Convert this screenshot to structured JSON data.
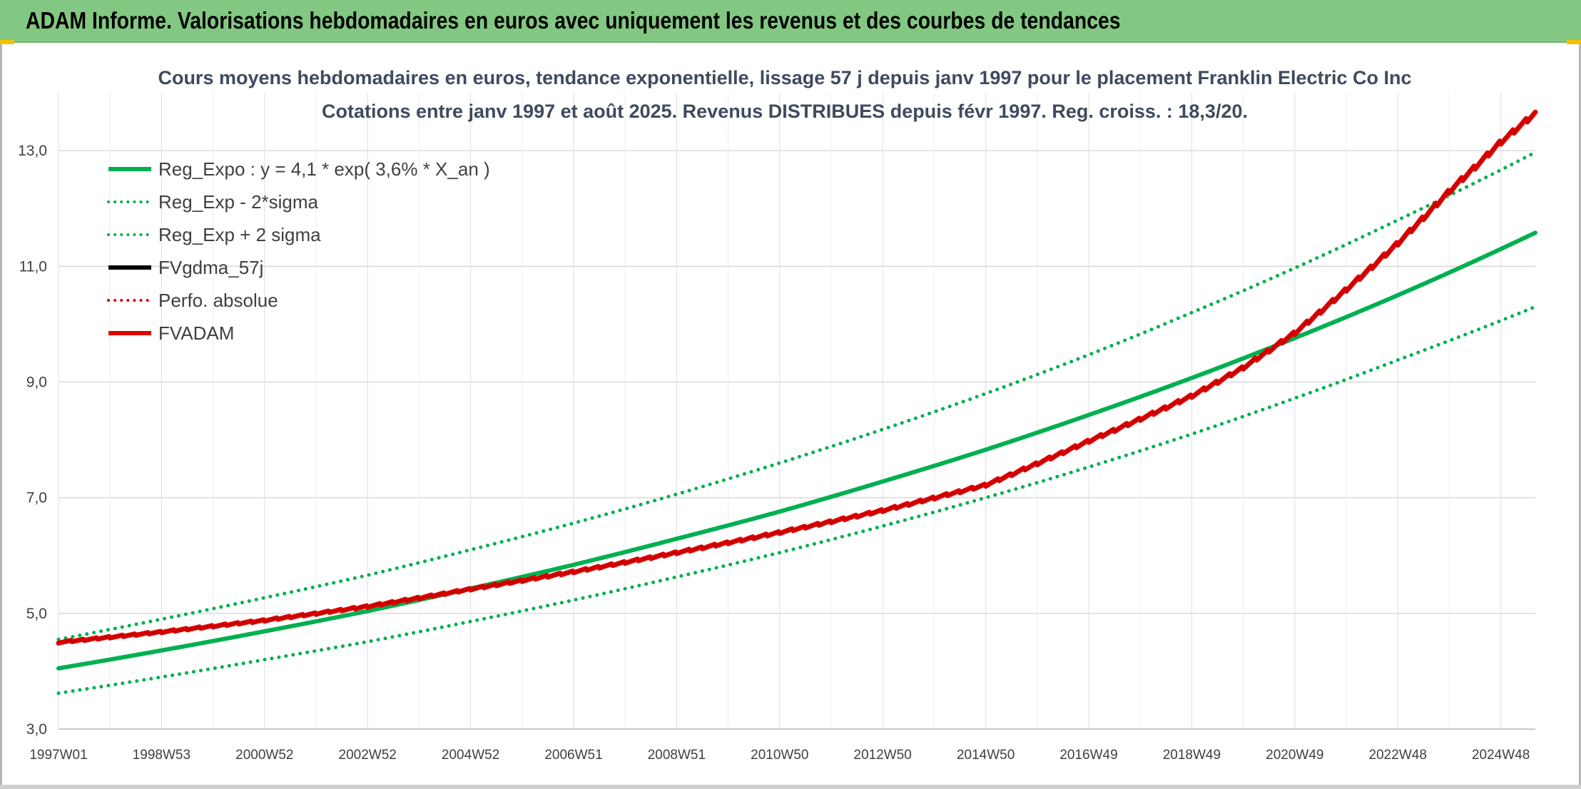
{
  "header": {
    "title": "ADAM Informe. Valorisations hebdomadaires en euros avec uniquement les revenus et des courbes de tendances"
  },
  "chart_data": {
    "type": "line",
    "title": "Cours moyens hebdomadaires en euros, tendance exponentielle, lissage 57 j depuis janv 1997 pour le placement Franklin Electric Co Inc",
    "subtitle": "Cotations entre janv 1997 et août 2025. Revenus DISTRIBUES depuis févr 1997. Reg. croiss. : 18,3/20.",
    "xlabel": "",
    "ylabel": "",
    "ylim": [
      3,
      14
    ],
    "xlim": [
      1997.0,
      2025.67
    ],
    "y_ticks": [
      3,
      5,
      7,
      9,
      11,
      13
    ],
    "y_tick_labels": [
      "3,0",
      "5,0",
      "7,0",
      "9,0",
      "11,0",
      "13,0"
    ],
    "x_ticks": [
      1997.0,
      1999.0,
      2001.0,
      2003.0,
      2005.0,
      2007.0,
      2009.0,
      2011.0,
      2013.0,
      2015.0,
      2017.0,
      2019.0,
      2021.0,
      2023.0,
      2025.0
    ],
    "x_tick_labels": [
      "1997W01",
      "1998W53",
      "2000W52",
      "2002W52",
      "2004W52",
      "2006W51",
      "2008W51",
      "2010W50",
      "2012W50",
      "2014W50",
      "2016W49",
      "2018W49",
      "2020W49",
      "2022W48",
      "2024W48"
    ],
    "grid": true,
    "legend_position": "top-left",
    "series": [
      {
        "name": "Reg_Expo : y = 4,1 * exp( 3,6% *  X_an )",
        "color": "#00b050",
        "style": "solid",
        "x": [
          1997,
          1999,
          2001,
          2003,
          2005,
          2007,
          2009,
          2011,
          2013,
          2015,
          2017,
          2019,
          2021,
          2023,
          2025.67
        ],
        "values": [
          4.05,
          4.36,
          4.69,
          5.04,
          5.43,
          5.84,
          6.29,
          6.76,
          7.28,
          7.83,
          8.43,
          9.07,
          9.76,
          10.5,
          11.58
        ]
      },
      {
        "name": "Reg_Exp - 2*sigma",
        "color": "#00b050",
        "style": "dotted",
        "x": [
          1997,
          1999,
          2001,
          2003,
          2005,
          2007,
          2009,
          2011,
          2013,
          2015,
          2017,
          2019,
          2021,
          2023,
          2025.67
        ],
        "values": [
          3.62,
          3.9,
          4.2,
          4.51,
          4.86,
          5.23,
          5.63,
          6.05,
          6.51,
          7.0,
          7.53,
          8.1,
          8.72,
          9.38,
          10.3
        ]
      },
      {
        "name": "Reg_Exp + 2 sigma",
        "color": "#00b050",
        "style": "dotted",
        "x": [
          1997,
          1999,
          2001,
          2003,
          2005,
          2007,
          2009,
          2011,
          2013,
          2015,
          2017,
          2019,
          2021,
          2023,
          2025.67
        ],
        "values": [
          4.55,
          4.9,
          5.27,
          5.66,
          6.1,
          6.56,
          7.06,
          7.6,
          8.18,
          8.8,
          9.47,
          10.2,
          10.97,
          11.8,
          12.97
        ]
      },
      {
        "name": "FVgdma_57j",
        "color": "#000000",
        "style": "solid",
        "x": [],
        "values": []
      },
      {
        "name": "Perfo. absolue",
        "color": "#e00000",
        "style": "dotted",
        "x": [],
        "values": []
      },
      {
        "name": "FVADAM",
        "color": "#e00000",
        "style": "solid",
        "x": [
          1997,
          1999,
          2001,
          2003,
          2005,
          2007,
          2009,
          2011,
          2013,
          2015,
          2017,
          2019,
          2020,
          2021,
          2022,
          2023,
          2024,
          2025,
          2025.67
        ],
        "values": [
          4.5,
          4.68,
          4.88,
          5.12,
          5.42,
          5.72,
          6.05,
          6.4,
          6.78,
          7.22,
          7.98,
          8.76,
          9.25,
          9.85,
          10.6,
          11.4,
          12.3,
          13.15,
          13.65
        ]
      }
    ]
  }
}
